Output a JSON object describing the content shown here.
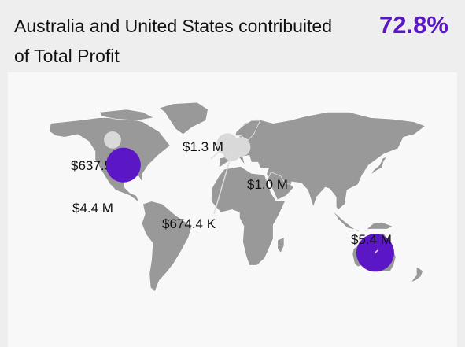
{
  "header": {
    "title_text": "Australia and United States contribuited",
    "title_value": "72.8%",
    "title_suffix": "of Total Profit"
  },
  "colors": {
    "accent": "#5b17c6",
    "land": "#999999",
    "land_border": "#ffffff",
    "bubble_minor": "#d9d9d9"
  },
  "chart_data": {
    "type": "bubble-map",
    "title": "Australia and United States contribuited 72.8% of Total Profit",
    "measure": "Profit",
    "points": [
      {
        "label": "$637.5 K",
        "value": 637.5,
        "unit": "K",
        "highlight": false,
        "lon": -108,
        "lat": 56
      },
      {
        "label": "$4.4 M",
        "value": 4400,
        "unit": "K",
        "highlight": true,
        "lon": -98,
        "lat": 38
      },
      {
        "label": "$1.3 M",
        "value": 1300,
        "unit": "K",
        "highlight": false,
        "lon": -2,
        "lat": 53
      },
      {
        "label": "$1.0 M",
        "value": 1000,
        "unit": "K",
        "highlight": false,
        "lon": 10,
        "lat": 51
      },
      {
        "label": "$674.4 K",
        "value": 674.4,
        "unit": "K",
        "highlight": false,
        "lon": 2,
        "lat": 47
      },
      {
        "label": "$5.4 M",
        "value": 5400,
        "unit": "K",
        "highlight": true,
        "lon": 134,
        "lat": -25
      }
    ]
  }
}
